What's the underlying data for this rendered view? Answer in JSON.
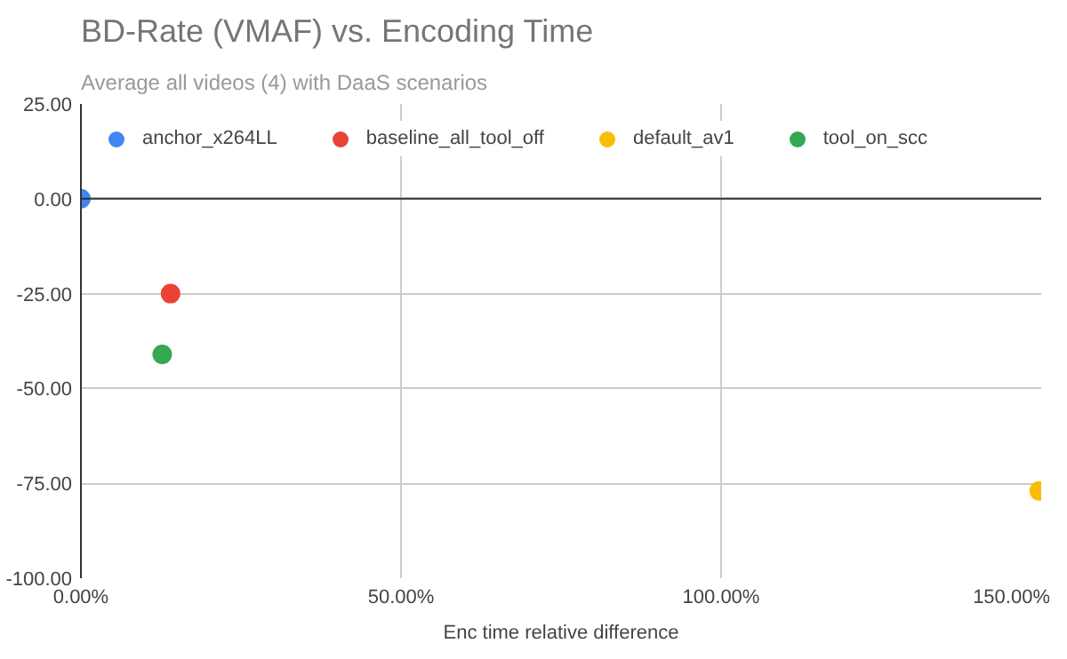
{
  "chart_data": {
    "type": "scatter",
    "title": "BD-Rate (VMAF) vs. Encoding Time",
    "subtitle": "Average all videos (4) with DaaS scenarios",
    "xlabel": "Enc time relative difference",
    "series": [
      {
        "name": "anchor_x264LL",
        "color": "#4285f4",
        "x": [
          0
        ],
        "values": [
          0
        ]
      },
      {
        "name": "baseline_all_tool_off",
        "color": "#ea4335",
        "x": [
          14
        ],
        "values": [
          -25
        ]
      },
      {
        "name": "default_av1",
        "color": "#fbbc04",
        "x": [
          149.7
        ],
        "values": [
          -77
        ]
      },
      {
        "name": "tool_on_scc",
        "color": "#34a853",
        "x": [
          12.7
        ],
        "values": [
          -41
        ]
      }
    ],
    "xlim": [
      0,
      150
    ],
    "xticks": [
      {
        "value": 0,
        "label": "0.00%"
      },
      {
        "value": 50,
        "label": "50.00%"
      },
      {
        "value": 100,
        "label": "100.00%"
      },
      {
        "value": 150,
        "label": "150.00%"
      }
    ],
    "ylim": [
      -100,
      25
    ],
    "yticks": [
      {
        "value": -100,
        "label": "-100.00"
      },
      {
        "value": -75,
        "label": "-75.00"
      },
      {
        "value": -50,
        "label": "-50.00"
      },
      {
        "value": -25,
        "label": "-25.00"
      },
      {
        "value": 0,
        "label": "0.00"
      },
      {
        "value": 25,
        "label": "25.00"
      }
    ],
    "ref_lines": [
      {
        "axis": "y",
        "value": 0,
        "color": "#333333"
      }
    ],
    "grid": true,
    "legend": "top left",
    "marker": "circle"
  }
}
